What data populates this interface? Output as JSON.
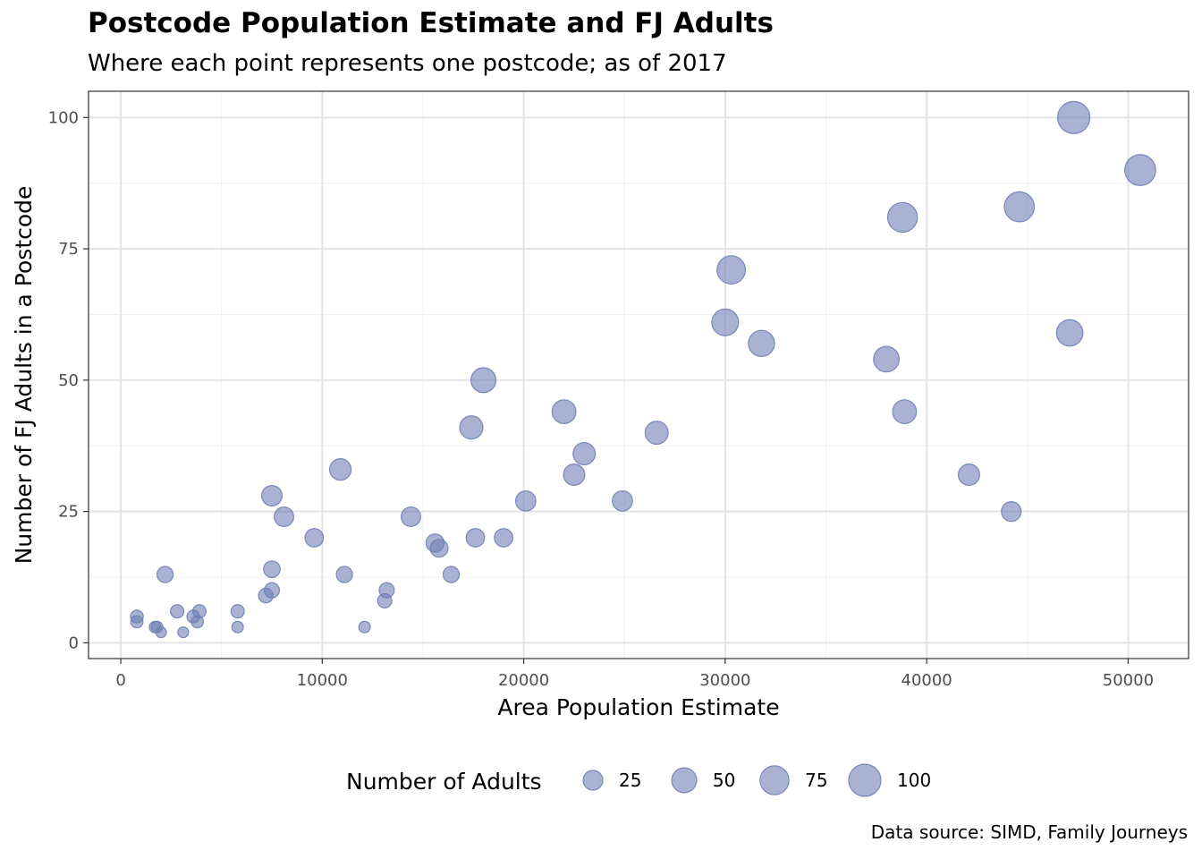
{
  "chart_data": {
    "type": "scatter",
    "title": "Postcode Population Estimate and FJ Adults",
    "subtitle": "Where each point represents one postcode; as of 2017",
    "xlabel": "Area Population Estimate",
    "ylabel": "Number of FJ Adults in a Postcode",
    "caption": "Data source: SIMD, Family Journeys",
    "xlim": [
      -1600,
      53000
    ],
    "ylim": [
      -3,
      105
    ],
    "x_ticks": [
      "0",
      "10000",
      "20000",
      "30000",
      "40000",
      "50000"
    ],
    "y_ticks": [
      "0",
      "25",
      "50",
      "75",
      "100"
    ],
    "grid": true,
    "point_color": "#6f7fb6",
    "point_opacity": 0.6,
    "size_legend": {
      "title": "Number of Adults",
      "position": "bottom",
      "values": [
        25,
        50,
        75,
        100
      ],
      "labels": [
        "25",
        "50",
        "75",
        "100"
      ]
    },
    "points": [
      {
        "x": 800,
        "y": 5
      },
      {
        "x": 800,
        "y": 4
      },
      {
        "x": 1700,
        "y": 3
      },
      {
        "x": 1800,
        "y": 3
      },
      {
        "x": 2000,
        "y": 2
      },
      {
        "x": 2200,
        "y": 13
      },
      {
        "x": 2800,
        "y": 6
      },
      {
        "x": 3100,
        "y": 2
      },
      {
        "x": 3600,
        "y": 5
      },
      {
        "x": 3800,
        "y": 4
      },
      {
        "x": 3900,
        "y": 6
      },
      {
        "x": 5800,
        "y": 6
      },
      {
        "x": 5800,
        "y": 3
      },
      {
        "x": 7200,
        "y": 9
      },
      {
        "x": 7500,
        "y": 10
      },
      {
        "x": 7500,
        "y": 14
      },
      {
        "x": 7500,
        "y": 28
      },
      {
        "x": 8100,
        "y": 24
      },
      {
        "x": 9600,
        "y": 20
      },
      {
        "x": 10900,
        "y": 33
      },
      {
        "x": 11100,
        "y": 13
      },
      {
        "x": 12100,
        "y": 3
      },
      {
        "x": 13100,
        "y": 8
      },
      {
        "x": 13200,
        "y": 10
      },
      {
        "x": 14400,
        "y": 24
      },
      {
        "x": 15600,
        "y": 19
      },
      {
        "x": 15800,
        "y": 18
      },
      {
        "x": 16400,
        "y": 13
      },
      {
        "x": 17400,
        "y": 41
      },
      {
        "x": 17600,
        "y": 20
      },
      {
        "x": 18000,
        "y": 50
      },
      {
        "x": 19000,
        "y": 20
      },
      {
        "x": 20100,
        "y": 27
      },
      {
        "x": 22000,
        "y": 44
      },
      {
        "x": 22500,
        "y": 32
      },
      {
        "x": 23000,
        "y": 36
      },
      {
        "x": 24900,
        "y": 27
      },
      {
        "x": 26600,
        "y": 40
      },
      {
        "x": 30000,
        "y": 61
      },
      {
        "x": 30300,
        "y": 71
      },
      {
        "x": 31800,
        "y": 57
      },
      {
        "x": 38000,
        "y": 54
      },
      {
        "x": 38800,
        "y": 81
      },
      {
        "x": 38900,
        "y": 44
      },
      {
        "x": 42100,
        "y": 32
      },
      {
        "x": 44200,
        "y": 25
      },
      {
        "x": 44600,
        "y": 83
      },
      {
        "x": 47100,
        "y": 59
      },
      {
        "x": 47300,
        "y": 100
      },
      {
        "x": 50600,
        "y": 90
      }
    ]
  }
}
